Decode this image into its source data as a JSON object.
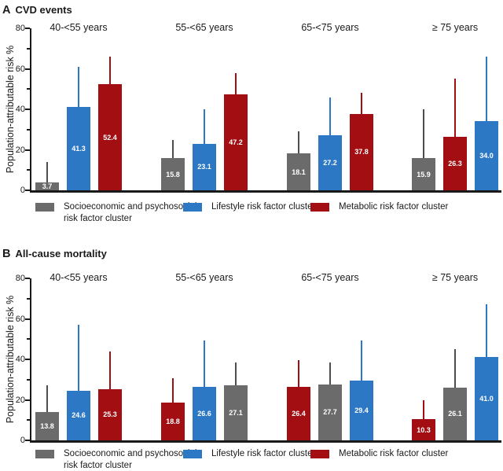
{
  "panels": [
    {
      "letter": "A",
      "title": "CVD events"
    },
    {
      "letter": "B",
      "title": "All-cause mortality"
    }
  ],
  "colors": {
    "socioeconomic": "#6b6b6b",
    "lifestyle": "#2d78c5",
    "metabolic": "#a30e13",
    "socioeconomic_error": "#4d4d4d",
    "axis": "#1a1a1a",
    "value_label": "#ffffff"
  },
  "legend": {
    "items": [
      {
        "key": "socioeconomic",
        "line1": "Socioeconomic and psychosocial",
        "line2": "risk factor cluster"
      },
      {
        "key": "lifestyle",
        "line1": "Lifestyle risk factor cluster",
        "line2": ""
      },
      {
        "key": "metabolic",
        "line1": "Metabolic risk factor cluster",
        "line2": ""
      }
    ]
  },
  "chart_data": [
    {
      "type": "bar",
      "panel": "A",
      "title": "CVD events",
      "ylabel": "Population-attributable risk %",
      "ylim": [
        0,
        80
      ],
      "yticks": [
        0,
        20,
        40,
        60,
        80
      ],
      "yticks_minor": [
        10,
        30,
        50,
        70
      ],
      "grid": false,
      "legend_position": "bottom",
      "categories": [
        "40-<55 years",
        "55-<65 years",
        "65-<75 years",
        "≥ 75 years"
      ],
      "groups": [
        {
          "category": "40-<55 years",
          "bars": [
            {
              "cluster": "socioeconomic",
              "value": 3.7,
              "label": "3.7",
              "upper": 14
            },
            {
              "cluster": "lifestyle",
              "value": 41.3,
              "label": "41.3",
              "upper": 61
            },
            {
              "cluster": "metabolic",
              "value": 52.4,
              "label": "52.4",
              "upper": 66
            }
          ]
        },
        {
          "category": "55-<65 years",
          "bars": [
            {
              "cluster": "socioeconomic",
              "value": 15.8,
              "label": "15.8",
              "upper": 25
            },
            {
              "cluster": "lifestyle",
              "value": 23.1,
              "label": "23.1",
              "upper": 40
            },
            {
              "cluster": "metabolic",
              "value": 47.2,
              "label": "47.2",
              "upper": 58
            }
          ]
        },
        {
          "category": "65-<75 years",
          "bars": [
            {
              "cluster": "socioeconomic",
              "value": 18.1,
              "label": "18.1",
              "upper": 29
            },
            {
              "cluster": "lifestyle",
              "value": 27.2,
              "label": "27.2",
              "upper": 46
            },
            {
              "cluster": "metabolic",
              "value": 37.8,
              "label": "37.8",
              "upper": 48
            }
          ]
        },
        {
          "category": "≥ 75 years",
          "bars": [
            {
              "cluster": "socioeconomic",
              "value": 15.9,
              "label": "15.9",
              "upper": 40
            },
            {
              "cluster": "metabolic",
              "value": 26.3,
              "label": "26.3",
              "upper": 55
            },
            {
              "cluster": "lifestyle",
              "value": 34.0,
              "label": "34.0",
              "upper": 66
            }
          ]
        }
      ]
    },
    {
      "type": "bar",
      "panel": "B",
      "title": "All-cause mortality",
      "ylabel": "Population-attributable risk %",
      "ylim": [
        0,
        80
      ],
      "yticks": [
        0,
        20,
        40,
        60,
        80
      ],
      "yticks_minor": [
        10,
        30,
        50,
        70
      ],
      "grid": false,
      "legend_position": "bottom",
      "categories": [
        "40-<55 years",
        "55-<65 years",
        "65-<75 years",
        "≥ 75 years"
      ],
      "groups": [
        {
          "category": "40-<55 years",
          "bars": [
            {
              "cluster": "socioeconomic",
              "value": 13.8,
              "label": "13.8",
              "upper": 27
            },
            {
              "cluster": "lifestyle",
              "value": 24.6,
              "label": "24.6",
              "upper": 57
            },
            {
              "cluster": "metabolic",
              "value": 25.3,
              "label": "25.3",
              "upper": 44
            }
          ]
        },
        {
          "category": "55-<65 years",
          "bars": [
            {
              "cluster": "metabolic",
              "value": 18.8,
              "label": "18.8",
              "upper": 30.5
            },
            {
              "cluster": "lifestyle",
              "value": 26.6,
              "label": "26.6",
              "upper": 49.5
            },
            {
              "cluster": "socioeconomic",
              "value": 27.1,
              "label": "27.1",
              "upper": 38.5
            }
          ]
        },
        {
          "category": "65-<75 years",
          "bars": [
            {
              "cluster": "metabolic",
              "value": 26.4,
              "label": "26.4",
              "upper": 39.5
            },
            {
              "cluster": "socioeconomic",
              "value": 27.7,
              "label": "27.7",
              "upper": 38.5
            },
            {
              "cluster": "lifestyle",
              "value": 29.4,
              "label": "29.4",
              "upper": 49.5
            }
          ]
        },
        {
          "category": "≥ 75 years",
          "bars": [
            {
              "cluster": "metabolic",
              "value": 10.3,
              "label": "10.3",
              "upper": 20
            },
            {
              "cluster": "socioeconomic",
              "value": 26.1,
              "label": "26.1",
              "upper": 45
            },
            {
              "cluster": "lifestyle",
              "value": 41.0,
              "label": "41.0",
              "upper": 67
            }
          ]
        }
      ]
    }
  ]
}
